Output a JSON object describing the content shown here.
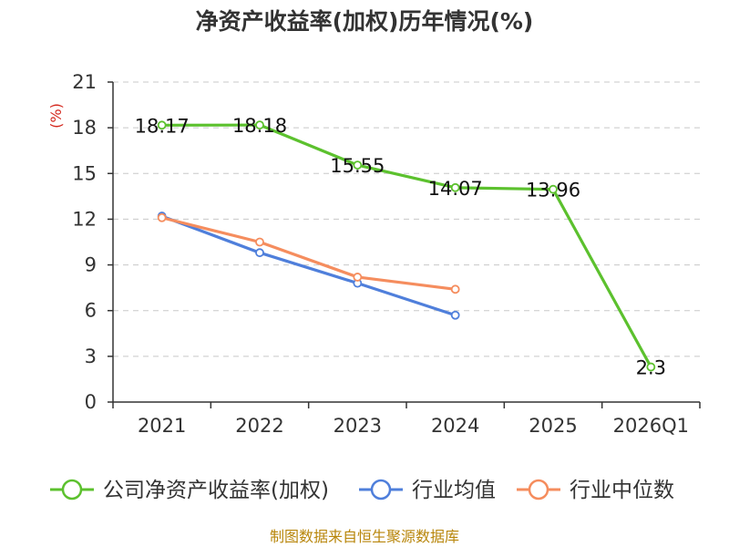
{
  "chart_data": {
    "type": "line",
    "title": "净资产收益率(加权)历年情况(%)",
    "ylabel": "(%)",
    "categories": [
      "2021",
      "2022",
      "2023",
      "2024",
      "2025",
      "2026Q1"
    ],
    "yticks": [
      "0",
      "3",
      "6",
      "9",
      "12",
      "15",
      "18",
      "21"
    ],
    "ylim": [
      0,
      21
    ],
    "grid": true,
    "legend_position": "bottom",
    "series": [
      {
        "name": "公司净资产收益率(加权)",
        "color": "#5cc12e",
        "values": [
          18.17,
          18.18,
          15.55,
          14.07,
          13.96,
          2.3
        ],
        "labels": [
          "18.17",
          "18.18",
          "15.55",
          "14.07",
          "13.96",
          "2.3"
        ]
      },
      {
        "name": "行业均值",
        "color": "#4f7fdb",
        "values": [
          12.2,
          9.8,
          7.8,
          5.7,
          null,
          null
        ]
      },
      {
        "name": "行业中位数",
        "color": "#f58d5e",
        "values": [
          12.1,
          10.5,
          8.2,
          7.4,
          null,
          null
        ]
      }
    ]
  },
  "source": "制图数据来自恒生聚源数据库"
}
